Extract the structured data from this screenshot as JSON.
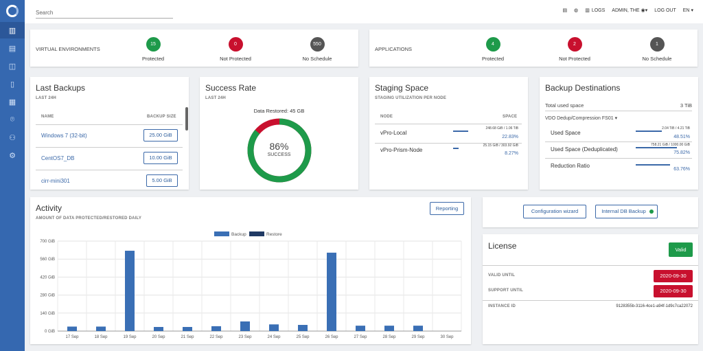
{
  "topbar": {
    "search_placeholder": "Search",
    "logs": "LOGS",
    "user": "ADMIN, THE",
    "logout": "LOG OUT",
    "lang": "EN"
  },
  "virtual": {
    "title": "VIRTUAL ENVIRONMENTS",
    "protected_count": "15",
    "protected_label": "Protected",
    "notprot_count": "0",
    "notprot_label": "Not Protected",
    "nosched_count": "550",
    "nosched_label": "No Schedule"
  },
  "apps": {
    "title": "APPLICATIONS",
    "protected_count": "4",
    "protected_label": "Protected",
    "notprot_count": "2",
    "notprot_label": "Not Protected",
    "nosched_count": "1",
    "nosched_label": "No Schedule"
  },
  "last_backups": {
    "title": "Last Backups",
    "sub": "LAST 24H",
    "col_name": "NAME",
    "col_size": "BACKUP SIZE",
    "rows": [
      {
        "name": "Windows 7 (32-bit)",
        "size": "25.00 GiB"
      },
      {
        "name": "CentOS7_DB",
        "size": "10.00 GiB"
      },
      {
        "name": "cirr-mini301",
        "size": "5.00 GiB"
      }
    ]
  },
  "success": {
    "title": "Success Rate",
    "sub": "LAST 24H",
    "restored": "Data Restored: 45 GB",
    "pct": "86%",
    "label": "SUCCESS",
    "value": 0.86
  },
  "staging": {
    "title": "Staging Space",
    "sub": "STAGING UTILIZATION PER NODE",
    "col_node": "NODE",
    "col_space": "SPACE",
    "rows": [
      {
        "name": "vPro-Local",
        "usage": "248.68 GiB / 1.06 TiB",
        "pct": "22.83%",
        "value": 0.2283
      },
      {
        "name": "vPro-Prism-Node",
        "usage": "25.15 GiB / 303.92 GiB",
        "pct": "8.27%",
        "value": 0.0827
      }
    ]
  },
  "destinations": {
    "title": "Backup Destinations",
    "total_label": "Total used space",
    "total_value": "3 TiB",
    "dropdown": "VDO Dedup/Compression FS01",
    "rows": [
      {
        "name": "Used Space",
        "usage": "2.04 TiB / 4.21 TiB",
        "pct": "48.51%",
        "value": 0.4851
      },
      {
        "name": "Used Space (Deduplicated)",
        "usage": "758.21 GiB / 1000.00 GiB",
        "pct": "75.82%",
        "value": 0.7582
      },
      {
        "name": "Reduction Ratio",
        "usage": "",
        "pct": "63.76%",
        "value": 0.6376
      }
    ]
  },
  "activity": {
    "title": "Activity",
    "sub": "AMOUNT OF DATA PROTECTED/RESTORED DAILY",
    "reporting": "Reporting"
  },
  "actions": {
    "wizard": "Configuration wizard",
    "db_backup": "Internal DB Backup"
  },
  "license": {
    "title": "License",
    "status": "Valid",
    "valid_until_label": "VALID UNTIL",
    "valid_until": "2020-09-30",
    "support_until_label": "SUPPORT UNTIL",
    "support_until": "2020-09-30",
    "instance_label": "INSTANCE ID",
    "instance_id": "9128355b-3116-4ce1-a94f-1d9c7ca22072"
  },
  "chart_data": {
    "type": "bar",
    "categories": [
      "17 Sep",
      "18 Sep",
      "19 Sep",
      "20 Sep",
      "21 Sep",
      "22 Sep",
      "23 Sep",
      "24 Sep",
      "25 Sep",
      "26 Sep",
      "27 Sep",
      "28 Sep",
      "29 Sep",
      "30 Sep"
    ],
    "series": [
      {
        "name": "Backup",
        "values": [
          35,
          35,
          625,
          32,
          32,
          38,
          75,
          52,
          48,
          610,
          42,
          42,
          42,
          0
        ]
      },
      {
        "name": "Restore",
        "values": [
          0,
          0,
          0,
          0,
          0,
          0,
          0,
          0,
          0,
          0,
          0,
          0,
          0,
          0
        ]
      }
    ],
    "yticks": [
      "0 GiB",
      "140 GiB",
      "280 GiB",
      "420 GiB",
      "560 GiB",
      "700 GiB"
    ],
    "ylim": [
      0,
      700
    ],
    "legend": "top-center",
    "colors": {
      "Backup": "#3a6fb5",
      "Restore": "#203a64"
    }
  }
}
